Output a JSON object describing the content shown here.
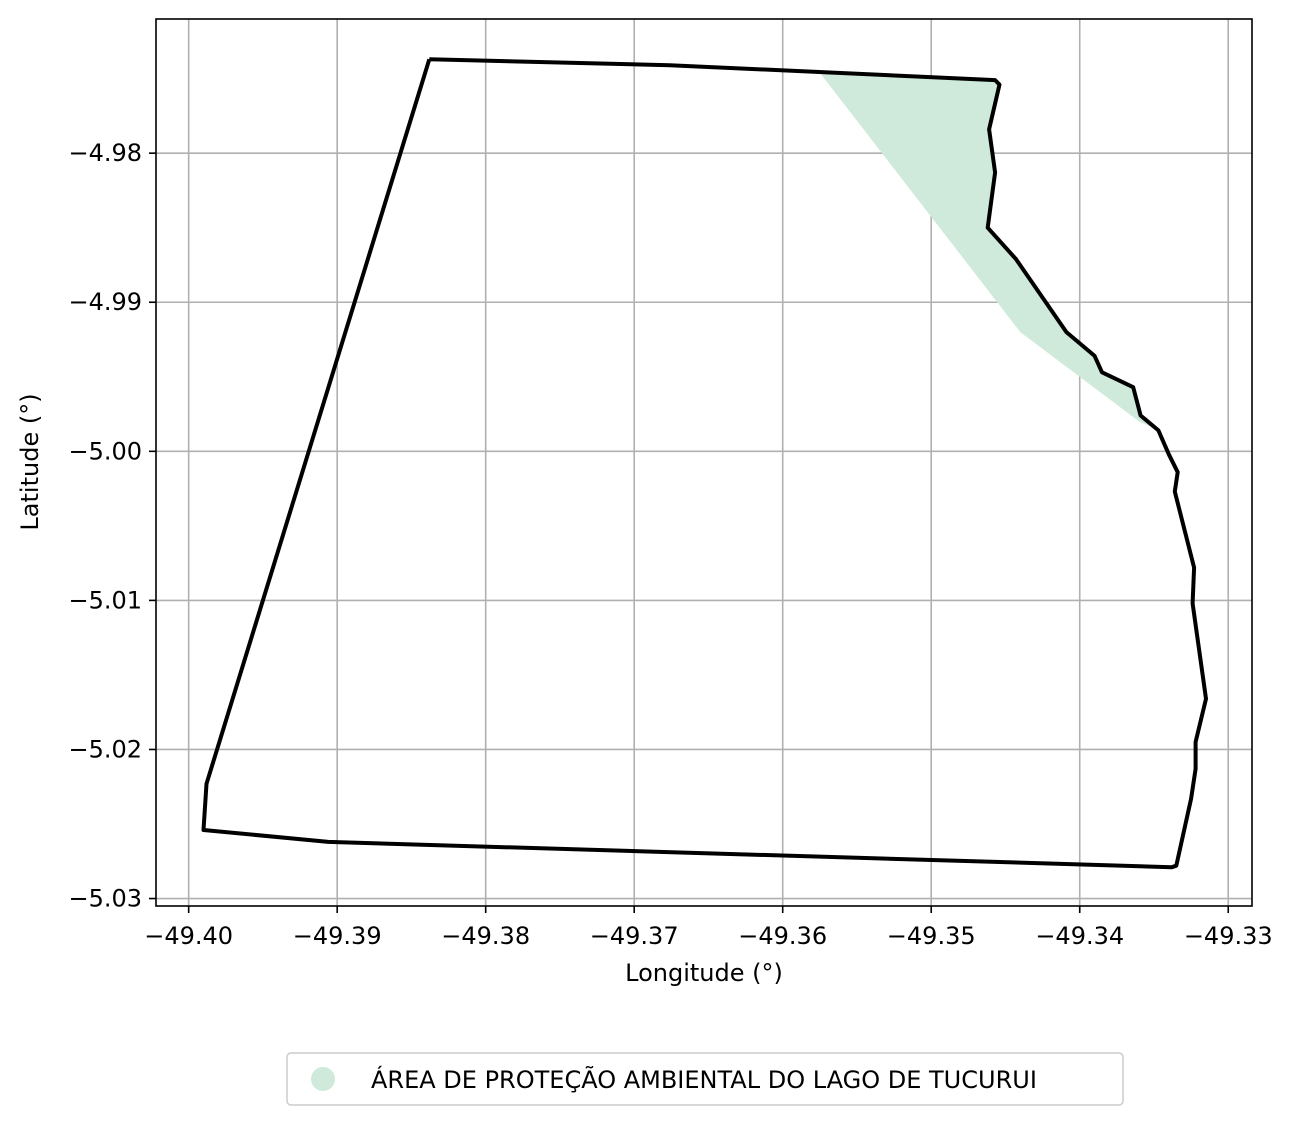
{
  "chart_data": {
    "type": "map",
    "title": "",
    "xlabel": "Longitude (°)",
    "ylabel": "Latitude (°)",
    "xlim": [
      -49.4022,
      -49.3284
    ],
    "ylim": [
      -5.0305,
      -4.971
    ],
    "grid": true,
    "xticks": [
      -49.4,
      -49.39,
      -49.38,
      -49.37,
      -49.36,
      -49.35,
      -49.34,
      -49.33
    ],
    "yticks": [
      -4.98,
      -4.99,
      -5.0,
      -5.01,
      -5.02,
      -5.03
    ],
    "xtick_labels": [
      "−49.40",
      "−49.39",
      "−49.38",
      "−49.37",
      "−49.36",
      "−49.35",
      "−49.34",
      "−49.33"
    ],
    "ytick_labels": [
      "−4.98",
      "−4.99",
      "−5.00",
      "−5.01",
      "−5.02",
      "−5.03"
    ],
    "boundary": {
      "stroke": "#000000",
      "points": [
        [
          -49.3838,
          -4.9737
        ],
        [
          -49.3676,
          -4.9741
        ],
        [
          -49.3457,
          -4.9751
        ],
        [
          -49.3454,
          -4.9754
        ],
        [
          -49.3461,
          -4.9784
        ],
        [
          -49.3457,
          -4.9813
        ],
        [
          -49.3462,
          -4.985
        ],
        [
          -49.3443,
          -4.9871
        ],
        [
          -49.3409,
          -4.992
        ],
        [
          -49.339,
          -4.9936
        ],
        [
          -49.3385,
          -4.9947
        ],
        [
          -49.3364,
          -4.9957
        ],
        [
          -49.3359,
          -4.9976
        ],
        [
          -49.3347,
          -4.9986
        ],
        [
          -49.334,
          -5.0002
        ],
        [
          -49.3334,
          -5.0014
        ],
        [
          -49.3336,
          -5.0027
        ],
        [
          -49.3323,
          -5.0078
        ],
        [
          -49.3324,
          -5.0102
        ],
        [
          -49.3315,
          -5.0166
        ],
        [
          -49.3322,
          -5.0195
        ],
        [
          -49.3322,
          -5.0213
        ],
        [
          -49.3325,
          -5.0233
        ],
        [
          -49.3335,
          -5.0278
        ],
        [
          -49.3338,
          -5.0279
        ],
        [
          -49.3906,
          -5.0262
        ],
        [
          -49.399,
          -5.0254
        ],
        [
          -49.3988,
          -5.0223
        ],
        [
          -49.3838,
          -4.9737
        ]
      ]
    },
    "series": [
      {
        "name": "ÁREA DE PROTEÇÃO AMBIENTAL DO LAGO DE TUCURUI",
        "color": "#cfeadb",
        "polygon": [
          [
            -49.3575,
            -4.9746
          ],
          [
            -49.3457,
            -4.9751
          ],
          [
            -49.3454,
            -4.9754
          ],
          [
            -49.3461,
            -4.9784
          ],
          [
            -49.3457,
            -4.9813
          ],
          [
            -49.3462,
            -4.985
          ],
          [
            -49.3443,
            -4.9871
          ],
          [
            -49.3409,
            -4.992
          ],
          [
            -49.339,
            -4.9936
          ],
          [
            -49.3385,
            -4.9947
          ],
          [
            -49.3364,
            -4.9957
          ],
          [
            -49.3359,
            -4.9976
          ],
          [
            -49.3347,
            -4.9986
          ],
          [
            -49.336,
            -4.998
          ],
          [
            -49.344,
            -4.992
          ],
          [
            -49.3575,
            -4.9746
          ]
        ]
      }
    ],
    "legend": {
      "position": "bottom-center",
      "marker": "circle"
    }
  }
}
